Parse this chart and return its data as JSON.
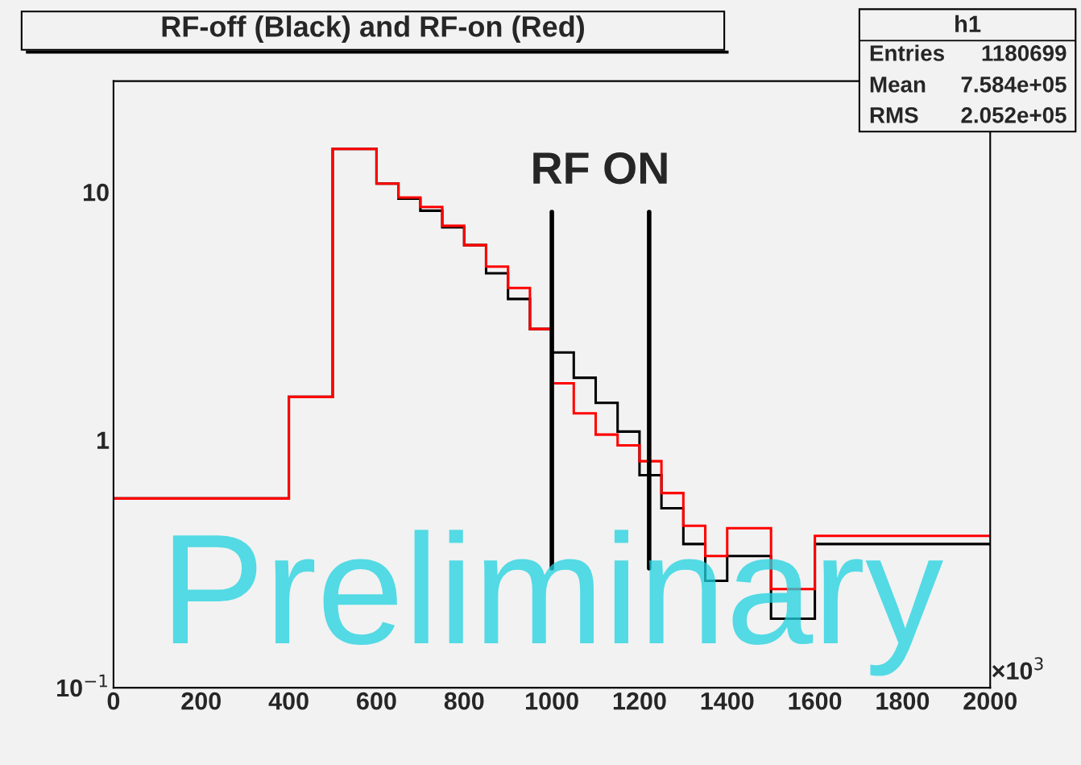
{
  "chart_data": {
    "type": "histogram",
    "title": "RF-off (Black) and RF-on (Red)",
    "bins": [
      0,
      400,
      500,
      600,
      650,
      700,
      750,
      800,
      850,
      900,
      950,
      1000,
      1050,
      1100,
      1150,
      1200,
      1250,
      1300,
      1350,
      1400,
      1500,
      1600,
      2000
    ],
    "series": [
      {
        "color": "#000000",
        "values": [
          0.58,
          1.49,
          14.9,
          10.8,
          9.4,
          8.4,
          7.2,
          6.1,
          4.7,
          3.7,
          2.8,
          2.25,
          1.78,
          1.41,
          1.08,
          0.72,
          0.53,
          0.38,
          0.27,
          0.34,
          0.19,
          0.38
        ]
      },
      {
        "color": "#ff0000",
        "values": [
          0.58,
          1.49,
          14.9,
          10.8,
          9.5,
          8.7,
          7.3,
          6.1,
          5.0,
          4.1,
          2.8,
          1.69,
          1.28,
          1.05,
          0.95,
          0.82,
          0.61,
          0.45,
          0.34,
          0.44,
          0.25,
          0.41
        ]
      }
    ],
    "log": "y",
    "xlim": [
      0,
      2000
    ],
    "xticks": [
      0,
      200,
      400,
      600,
      800,
      1000,
      1200,
      1400,
      1600,
      1800,
      2000
    ],
    "ylim": [
      0.1,
      28
    ],
    "yticks": [
      {
        "value": 0.1,
        "label": "10$^{−1}$"
      },
      1,
      10
    ],
    "ref_lines": [
      {
        "axis": "x",
        "value": 1000,
        "color": "#000000"
      },
      {
        "axis": "x",
        "value": 1222,
        "color": "#000000"
      }
    ],
    "annotations": [
      "RF ON",
      "h1",
      "Entries",
      "1180699",
      "Mean",
      "7.584e+05",
      "RMS",
      "2.052e+05",
      "Preliminary",
      "×10$^{3}$"
    ],
    "grid": false
  }
}
